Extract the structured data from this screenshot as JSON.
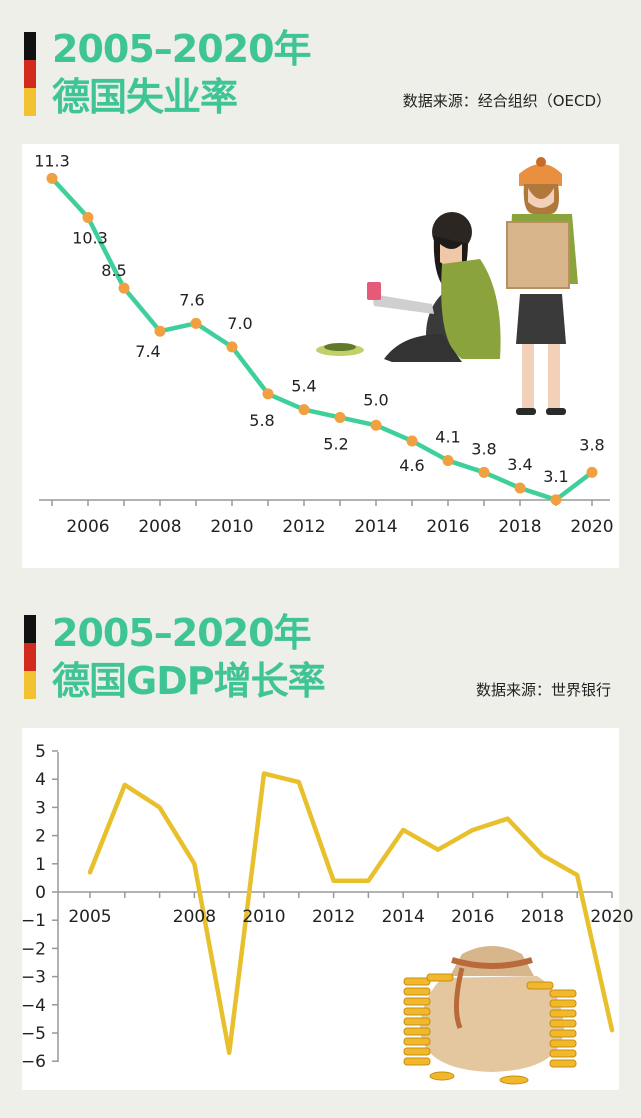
{
  "section1": {
    "title_line1": "2005–2020年",
    "title_line2": "德国失业率",
    "source": "数据来源：经合组织（OECD）"
  },
  "section2": {
    "title_line1": "2005–2020年",
    "title_line2": "德国GDP增长率",
    "source": "数据来源：世界银行"
  },
  "flag_colors": [
    "#111111",
    "#d32a1e",
    "#f2c230"
  ],
  "chart_data": [
    {
      "type": "line",
      "title": "2005–2020年 德国失业率",
      "x": [
        2005,
        2006,
        2007,
        2008,
        2009,
        2010,
        2011,
        2012,
        2013,
        2014,
        2015,
        2016,
        2017,
        2018,
        2019,
        2020
      ],
      "values": [
        11.3,
        10.3,
        8.5,
        7.4,
        7.6,
        7.0,
        5.8,
        5.4,
        5.2,
        5.0,
        4.6,
        4.1,
        3.8,
        3.4,
        3.1,
        3.8
      ],
      "data_labels": [
        "11.3",
        "10.3",
        "8.5",
        "7.4",
        "7.6",
        "7.0",
        "5.8",
        "5.4",
        "5.2",
        "5.0",
        "4.6",
        "4.1",
        "3.8",
        "3.4",
        "3.1",
        "3.8"
      ],
      "x_tick_labels": [
        "2006",
        "2008",
        "2010",
        "2012",
        "2014",
        "2016",
        "2018",
        "2020"
      ],
      "grid": false,
      "line_color": "#3fd09a",
      "marker_color": "#f0a040",
      "illustration": "beggar-icon"
    },
    {
      "type": "line",
      "title": "2005–2020年 德国GDP增长率",
      "x": [
        2005,
        2006,
        2007,
        2008,
        2009,
        2010,
        2011,
        2012,
        2013,
        2014,
        2015,
        2016,
        2017,
        2018,
        2019,
        2020
      ],
      "values": [
        0.7,
        3.8,
        3.0,
        1.0,
        -5.7,
        4.2,
        3.9,
        0.4,
        0.4,
        2.2,
        1.5,
        2.2,
        2.6,
        1.3,
        0.6,
        -4.9
      ],
      "ylim": [
        -6,
        5
      ],
      "y_tick_labels": [
        "5",
        "4",
        "3",
        "2",
        "1",
        "0",
        "−1",
        "−2",
        "−3",
        "−4",
        "−5",
        "−6"
      ],
      "x_tick_labels": [
        "2005",
        "2008",
        "2010",
        "2012",
        "2014",
        "2016",
        "2018",
        "2020"
      ],
      "grid": false,
      "line_color": "#e8c02c",
      "illustration": "money-bag-icon"
    }
  ]
}
